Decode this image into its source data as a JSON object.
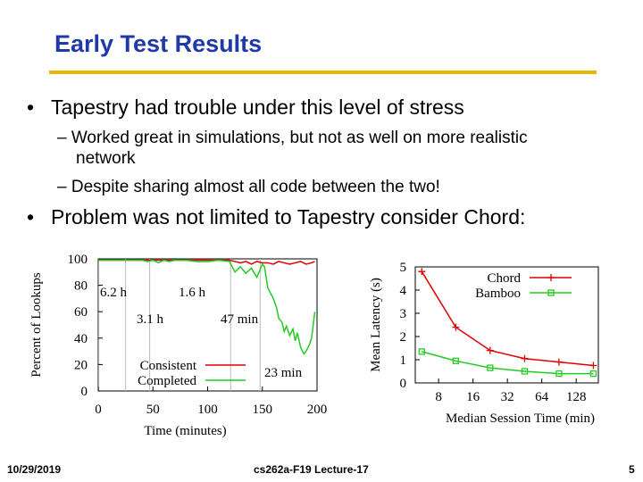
{
  "slide": {
    "title": "Early Test Results",
    "title_color": "#1f3aa8",
    "rule_color": "#e8b800",
    "bullets": [
      {
        "text": "Tapestry had trouble under this level of stress",
        "subs": [
          {
            "line1": "– Worked great in simulations, but not as well on more realistic",
            "line2": "network"
          },
          {
            "line1": "– Despite sharing almost all code between the two!",
            "line2": ""
          }
        ]
      },
      {
        "text": "Problem was not limited to Tapestry consider Chord:",
        "subs": []
      }
    ],
    "bullet_symbol": "•",
    "footer": {
      "date": "10/29/2019",
      "course": "cs262a-F19 Lecture-17",
      "page": "5"
    }
  },
  "chart_data": [
    {
      "type": "line",
      "title": "",
      "xlabel": "Time (minutes)",
      "ylabel": "Percent of Lookups",
      "xlim": [
        0,
        200
      ],
      "ylim": [
        0,
        100
      ],
      "xticks": [
        "0",
        "50",
        "100",
        "150",
        "200"
      ],
      "yticks": [
        "0",
        "20",
        "40",
        "60",
        "80",
        "100"
      ],
      "grid": false,
      "legend_position": "bottom-left",
      "series": [
        {
          "name": "Consistent",
          "color": "#e00000",
          "x": [
            0,
            10,
            20,
            30,
            40,
            50,
            60,
            70,
            80,
            90,
            100,
            110,
            120,
            125,
            130,
            135,
            140,
            145,
            150,
            155,
            160,
            165,
            170,
            175,
            180,
            185,
            190,
            195,
            198
          ],
          "y": [
            99,
            99,
            99,
            99,
            99,
            99,
            99,
            99,
            99,
            99,
            99,
            99,
            99,
            98,
            97,
            98,
            96,
            98,
            97,
            97,
            96,
            98,
            97,
            96,
            97,
            98,
            96,
            97,
            98
          ]
        },
        {
          "name": "Completed",
          "color": "#22cc22",
          "x": [
            0,
            10,
            20,
            30,
            40,
            45,
            50,
            55,
            60,
            65,
            70,
            80,
            90,
            100,
            110,
            120,
            125,
            130,
            135,
            140,
            145,
            148,
            150,
            152,
            155,
            160,
            163,
            165,
            168,
            170,
            172,
            175,
            178,
            180,
            182,
            185,
            188,
            190,
            193,
            195,
            198
          ],
          "y": [
            99,
            99,
            99,
            99,
            99,
            98,
            99,
            97,
            99,
            98,
            99,
            99,
            98,
            98,
            99,
            98,
            90,
            94,
            89,
            93,
            86,
            92,
            96,
            94,
            78,
            70,
            63,
            55,
            52,
            45,
            49,
            42,
            47,
            38,
            44,
            33,
            28,
            30,
            35,
            40,
            60
          ]
        }
      ],
      "annotations": [
        "6.2 h",
        "1.6 h",
        "3.1 h",
        "47 min",
        "23 min"
      ]
    },
    {
      "type": "line",
      "title": "",
      "xlabel": "Median Session Time (min)",
      "ylabel": "Mean Latency (s)",
      "x_scale": "log2",
      "ylim": [
        0,
        5
      ],
      "xticks": [
        "8",
        "16",
        "32",
        "64",
        "128"
      ],
      "yticks": [
        "0",
        "1",
        "2",
        "3",
        "4",
        "5"
      ],
      "grid": false,
      "legend_position": "top-right",
      "series": [
        {
          "name": "Chord",
          "color": "#e00000",
          "marker": "+",
          "x": [
            5.7,
            11.3,
            22.6,
            45.3,
            90.5,
            181
          ],
          "y": [
            4.8,
            2.4,
            1.4,
            1.05,
            0.9,
            0.75
          ]
        },
        {
          "name": "Bamboo",
          "color": "#22cc22",
          "marker": "square",
          "x": [
            5.7,
            11.3,
            22.6,
            45.3,
            90.5,
            181
          ],
          "y": [
            1.35,
            0.95,
            0.65,
            0.5,
            0.4,
            0.4
          ]
        }
      ]
    }
  ]
}
